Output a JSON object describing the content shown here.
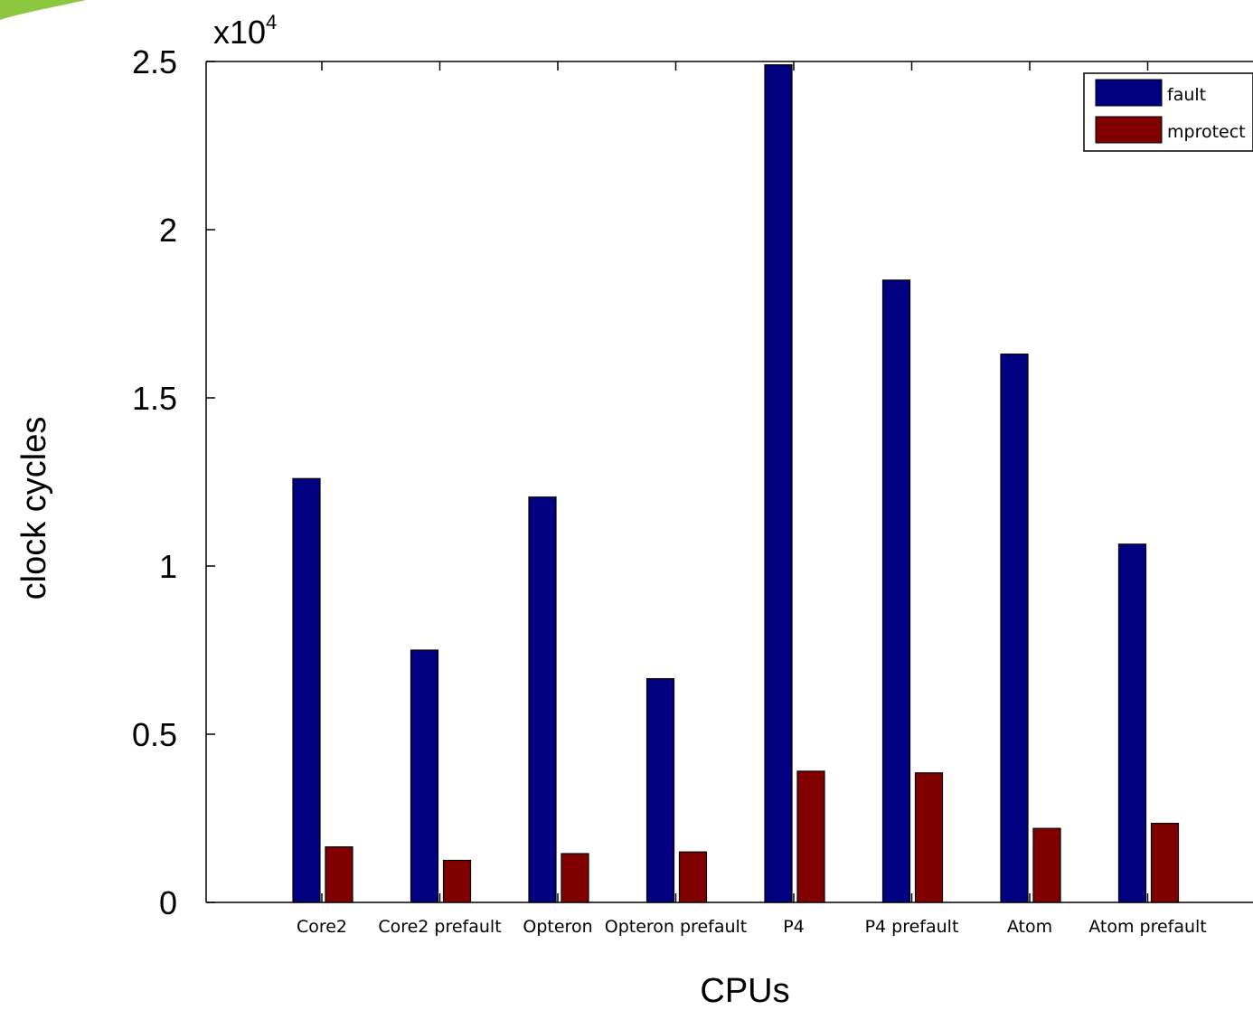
{
  "chart_data": {
    "type": "bar",
    "title": "",
    "xlabel": "CPUs",
    "ylabel": "clock cycles",
    "exponent_base": "x10",
    "exponent_power": "4",
    "categories": [
      "Core2",
      "Core2 prefault",
      "Opteron",
      "Opteron prefault",
      "P4",
      "P4 prefault",
      "Atom",
      "Atom prefault"
    ],
    "series": [
      {
        "name": "fault",
        "color": "#000080",
        "values": [
          12600,
          7500,
          12050,
          6650,
          24900,
          18500,
          16300,
          10650
        ]
      },
      {
        "name": "mprotect",
        "color": "#800000",
        "values": [
          1650,
          1250,
          1450,
          1500,
          3900,
          3850,
          2200,
          2350
        ]
      }
    ],
    "ylim": [
      0,
      25000
    ],
    "yticks": [
      0,
      5000,
      10000,
      15000,
      20000,
      25000
    ],
    "ytick_labels": [
      "0",
      "0.5",
      "1",
      "1.5",
      "2",
      "2.5"
    ],
    "grid": false,
    "legend_position": "top-right"
  }
}
